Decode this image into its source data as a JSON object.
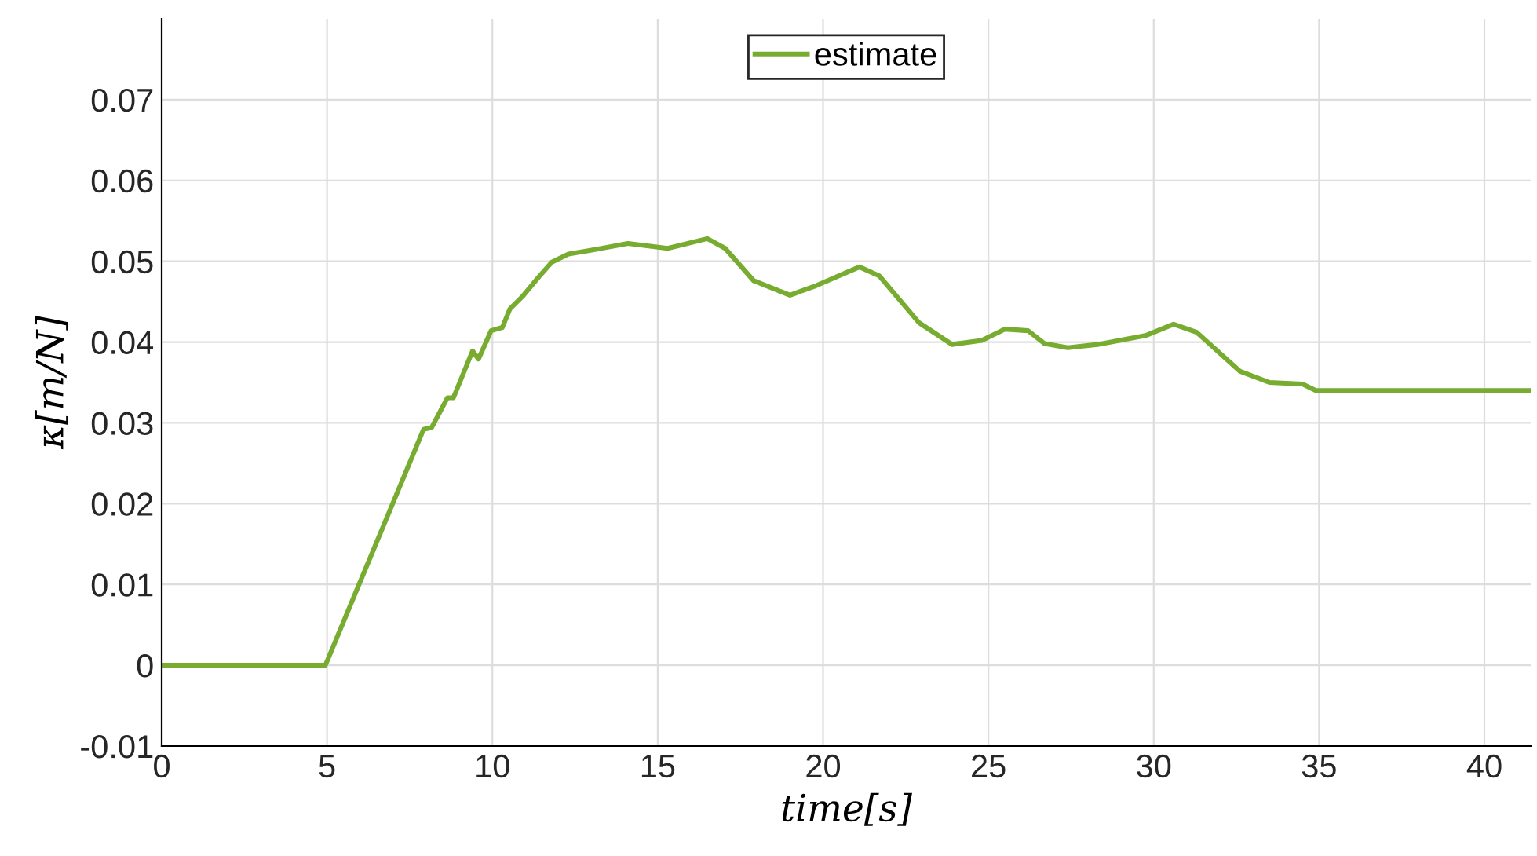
{
  "chart_data": {
    "type": "line",
    "xlabel": "time[s]",
    "ylabel": "κ[m/N]",
    "xlim": [
      0,
      41.4
    ],
    "ylim": [
      -0.01,
      0.08
    ],
    "xticks": [
      0,
      5,
      10,
      15,
      20,
      25,
      30,
      35,
      40
    ],
    "yticks": [
      -0.01,
      0,
      0.01,
      0.02,
      0.03,
      0.04,
      0.05,
      0.06,
      0.07
    ],
    "grid": true,
    "legend": "top",
    "line_style": "solid",
    "marker": "none",
    "series": [
      {
        "name": "estimate",
        "color": "#77ac30",
        "x": [
          0,
          4.95,
          7.92,
          8.16,
          8.64,
          8.82,
          9.4,
          9.58,
          9.96,
          10.3,
          10.53,
          10.9,
          11.39,
          11.8,
          12.3,
          12.9,
          14.1,
          15.3,
          16.5,
          17.04,
          17.9,
          19.0,
          19.8,
          21.1,
          21.7,
          22.9,
          23.9,
          24.8,
          25.5,
          26.2,
          26.7,
          27.4,
          28.3,
          29.75,
          30.6,
          31.3,
          32.6,
          33.5,
          34.5,
          34.9,
          41.4
        ],
        "values": [
          0,
          0,
          0.0292,
          0.0294,
          0.0331,
          0.0331,
          0.0389,
          0.0379,
          0.0414,
          0.0418,
          0.0441,
          0.0456,
          0.048,
          0.0499,
          0.0509,
          0.0513,
          0.0522,
          0.0516,
          0.0528,
          0.0516,
          0.0476,
          0.0458,
          0.047,
          0.0493,
          0.0482,
          0.0424,
          0.0397,
          0.0402,
          0.0416,
          0.0414,
          0.0398,
          0.0393,
          0.0397,
          0.0408,
          0.0422,
          0.0412,
          0.0364,
          0.035,
          0.0348,
          0.034,
          0.034
        ]
      }
    ]
  }
}
